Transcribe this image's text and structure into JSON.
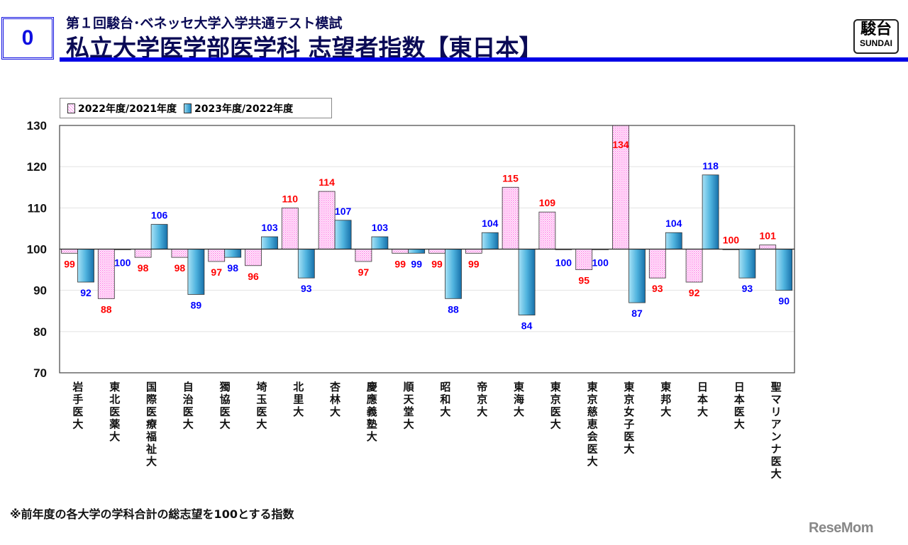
{
  "header": {
    "slide_number": "0",
    "subtitle": "第１回駿台･ベネッセ大学入学共通テスト模試",
    "title": "私立大学医学部医学科 志望者指数【東日本】",
    "logo_kanji": "駿台",
    "logo_roman": "SUNDAI"
  },
  "footnote": "※前年度の各大学の学科合計の総志望を100とする指数",
  "watermark": "ReseMom",
  "chart_data": {
    "type": "bar",
    "baseline": 100,
    "ylim": [
      70,
      130
    ],
    "yticks": [
      "130",
      "120",
      "110",
      "100",
      "90",
      "80",
      "70"
    ],
    "grid": true,
    "legend": "top-left",
    "categories": [
      "岩手医大",
      "東北医薬大",
      "国際医療福祉大",
      "自治医大",
      "獨協医大",
      "埼玉医大",
      "北里大",
      "杏林大",
      "慶應義塾大",
      "順天堂大",
      "昭和大",
      "帝京大",
      "東海大",
      "東京医大",
      "東京慈恵会医大",
      "東京女子医大",
      "東邦大",
      "日本大",
      "日本医大",
      "聖マリアンナ医大"
    ],
    "series": [
      {
        "name": "2022年度/2021年度",
        "color": "#ff66dd",
        "label_color": "#ff0000",
        "values": [
          99,
          88,
          98,
          98,
          97,
          96,
          110,
          114,
          97,
          99,
          99,
          99,
          115,
          109,
          95,
          134,
          93,
          92,
          100,
          101
        ]
      },
      {
        "name": "2023年度/2022年度",
        "color": "#2a90c8",
        "label_color": "#0000ff",
        "values": [
          92,
          100,
          106,
          89,
          98,
          103,
          93,
          107,
          103,
          99,
          88,
          104,
          84,
          100,
          100,
          87,
          104,
          118,
          93,
          90
        ]
      }
    ]
  }
}
